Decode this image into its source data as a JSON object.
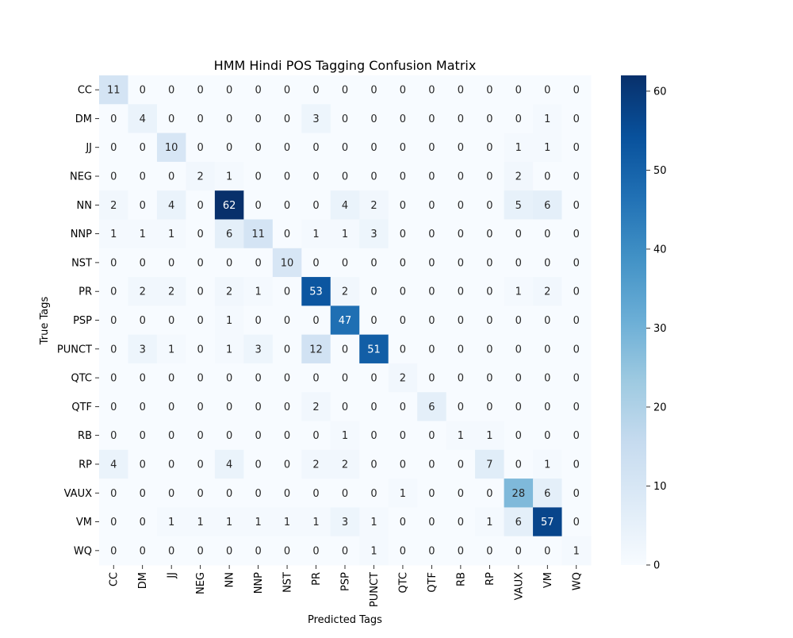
{
  "chart_data": {
    "type": "heatmap",
    "title": "HMM Hindi POS Tagging Confusion Matrix",
    "xlabel": "Predicted Tags",
    "ylabel": "True Tags",
    "x_categories": [
      "CC",
      "DM",
      "JJ",
      "NEG",
      "NN",
      "NNP",
      "NST",
      "PR",
      "PSP",
      "PUNCT",
      "QTC",
      "QTF",
      "RB",
      "RP",
      "VAUX",
      "VM",
      "WQ"
    ],
    "y_categories": [
      "CC",
      "DM",
      "JJ",
      "NEG",
      "NN",
      "NNP",
      "NST",
      "PR",
      "PSP",
      "PUNCT",
      "QTC",
      "QTF",
      "RB",
      "RP",
      "VAUX",
      "VM",
      "WQ"
    ],
    "values": [
      [
        11,
        0,
        0,
        0,
        0,
        0,
        0,
        0,
        0,
        0,
        0,
        0,
        0,
        0,
        0,
        0,
        0
      ],
      [
        0,
        4,
        0,
        0,
        0,
        0,
        0,
        3,
        0,
        0,
        0,
        0,
        0,
        0,
        0,
        1,
        0
      ],
      [
        0,
        0,
        10,
        0,
        0,
        0,
        0,
        0,
        0,
        0,
        0,
        0,
        0,
        0,
        1,
        1,
        0
      ],
      [
        0,
        0,
        0,
        2,
        1,
        0,
        0,
        0,
        0,
        0,
        0,
        0,
        0,
        0,
        2,
        0,
        0
      ],
      [
        2,
        0,
        4,
        0,
        62,
        0,
        0,
        0,
        4,
        2,
        0,
        0,
        0,
        0,
        5,
        6,
        0
      ],
      [
        1,
        1,
        1,
        0,
        6,
        11,
        0,
        1,
        1,
        3,
        0,
        0,
        0,
        0,
        0,
        0,
        0
      ],
      [
        0,
        0,
        0,
        0,
        0,
        0,
        10,
        0,
        0,
        0,
        0,
        0,
        0,
        0,
        0,
        0,
        0
      ],
      [
        0,
        2,
        2,
        0,
        2,
        1,
        0,
        53,
        2,
        0,
        0,
        0,
        0,
        0,
        1,
        2,
        0
      ],
      [
        0,
        0,
        0,
        0,
        1,
        0,
        0,
        0,
        47,
        0,
        0,
        0,
        0,
        0,
        0,
        0,
        0
      ],
      [
        0,
        3,
        1,
        0,
        1,
        3,
        0,
        12,
        0,
        51,
        0,
        0,
        0,
        0,
        0,
        0,
        0
      ],
      [
        0,
        0,
        0,
        0,
        0,
        0,
        0,
        0,
        0,
        0,
        2,
        0,
        0,
        0,
        0,
        0,
        0
      ],
      [
        0,
        0,
        0,
        0,
        0,
        0,
        0,
        2,
        0,
        0,
        0,
        6,
        0,
        0,
        0,
        0,
        0
      ],
      [
        0,
        0,
        0,
        0,
        0,
        0,
        0,
        0,
        1,
        0,
        0,
        0,
        1,
        1,
        0,
        0,
        0
      ],
      [
        4,
        0,
        0,
        0,
        4,
        0,
        0,
        2,
        2,
        0,
        0,
        0,
        0,
        7,
        0,
        1,
        0
      ],
      [
        0,
        0,
        0,
        0,
        0,
        0,
        0,
        0,
        0,
        0,
        1,
        0,
        0,
        0,
        28,
        6,
        0
      ],
      [
        0,
        0,
        1,
        1,
        1,
        1,
        1,
        1,
        3,
        1,
        0,
        0,
        0,
        1,
        6,
        57,
        0
      ],
      [
        0,
        0,
        0,
        0,
        0,
        0,
        0,
        0,
        0,
        1,
        0,
        0,
        0,
        0,
        0,
        0,
        1
      ]
    ],
    "colorbar": {
      "min": 0,
      "max": 62,
      "ticks": [
        0,
        10,
        20,
        30,
        40,
        50,
        60
      ]
    },
    "colormap": "Blues",
    "colors": {
      "low": "#f7fbff",
      "high": "#08306b",
      "text_dark": "#262626",
      "text_light": "#ffffff"
    }
  }
}
